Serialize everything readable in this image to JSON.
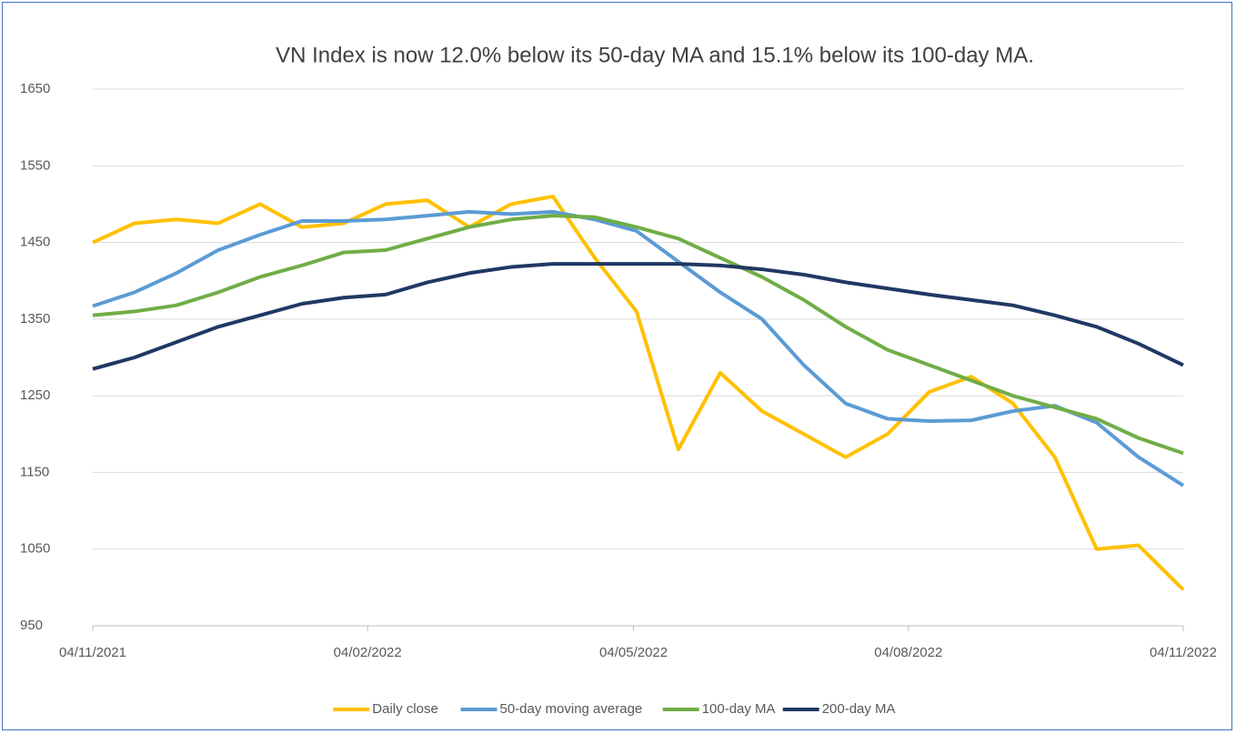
{
  "chart_data": {
    "type": "line",
    "title": "VN Index is now 12.0% below its 50-day MA and 15.1% below its 100-day MA.",
    "x": [
      "04/11/2021",
      "18/11/2021",
      "02/12/2021",
      "16/12/2021",
      "30/12/2021",
      "13/01/2022",
      "27/01/2022",
      "10/02/2022",
      "24/02/2022",
      "10/03/2022",
      "24/03/2022",
      "07/04/2022",
      "21/04/2022",
      "05/05/2022",
      "19/05/2022",
      "02/06/2022",
      "16/06/2022",
      "30/06/2022",
      "14/07/2022",
      "28/07/2022",
      "11/08/2022",
      "25/08/2022",
      "08/09/2022",
      "22/09/2022",
      "06/10/2022",
      "20/10/2022",
      "04/11/2022"
    ],
    "series": [
      {
        "name": "Daily close",
        "color": "#ffc000",
        "values": [
          1450,
          1475,
          1480,
          1475,
          1500,
          1470,
          1475,
          1500,
          1505,
          1470,
          1500,
          1510,
          1430,
          1360,
          1180,
          1280,
          1230,
          1200,
          1170,
          1200,
          1255,
          1275,
          1240,
          1170,
          1050,
          1055,
          997
        ]
      },
      {
        "name": "50-day moving average",
        "color": "#5b9bd5",
        "values": [
          1367,
          1385,
          1410,
          1440,
          1460,
          1478,
          1478,
          1480,
          1485,
          1490,
          1487,
          1490,
          1480,
          1465,
          1425,
          1385,
          1350,
          1290,
          1240,
          1220,
          1217,
          1218,
          1230,
          1237,
          1215,
          1170,
          1133
        ]
      },
      {
        "name": "100-day MA",
        "color": "#70ad47",
        "values": [
          1355,
          1360,
          1368,
          1385,
          1405,
          1420,
          1437,
          1440,
          1455,
          1470,
          1480,
          1485,
          1483,
          1470,
          1455,
          1430,
          1405,
          1375,
          1340,
          1310,
          1290,
          1270,
          1250,
          1235,
          1220,
          1195,
          1175
        ]
      },
      {
        "name": "200-day MA",
        "color": "#203864",
        "values": [
          1285,
          1300,
          1320,
          1340,
          1355,
          1370,
          1378,
          1382,
          1398,
          1410,
          1418,
          1422,
          1422,
          1422,
          1422,
          1420,
          1415,
          1408,
          1398,
          1390,
          1382,
          1375,
          1368,
          1355,
          1340,
          1318,
          1290
        ]
      }
    ],
    "xlim": [
      "04/11/2021",
      "04/11/2022"
    ],
    "xticks": [
      "04/11/2021",
      "04/02/2022",
      "04/05/2022",
      "04/08/2022",
      "04/11/2022"
    ],
    "ylim": [
      950,
      1650
    ],
    "yticks": [
      950,
      1050,
      1150,
      1250,
      1350,
      1450,
      1550,
      1650
    ],
    "grid": true,
    "legend": "bottom"
  }
}
